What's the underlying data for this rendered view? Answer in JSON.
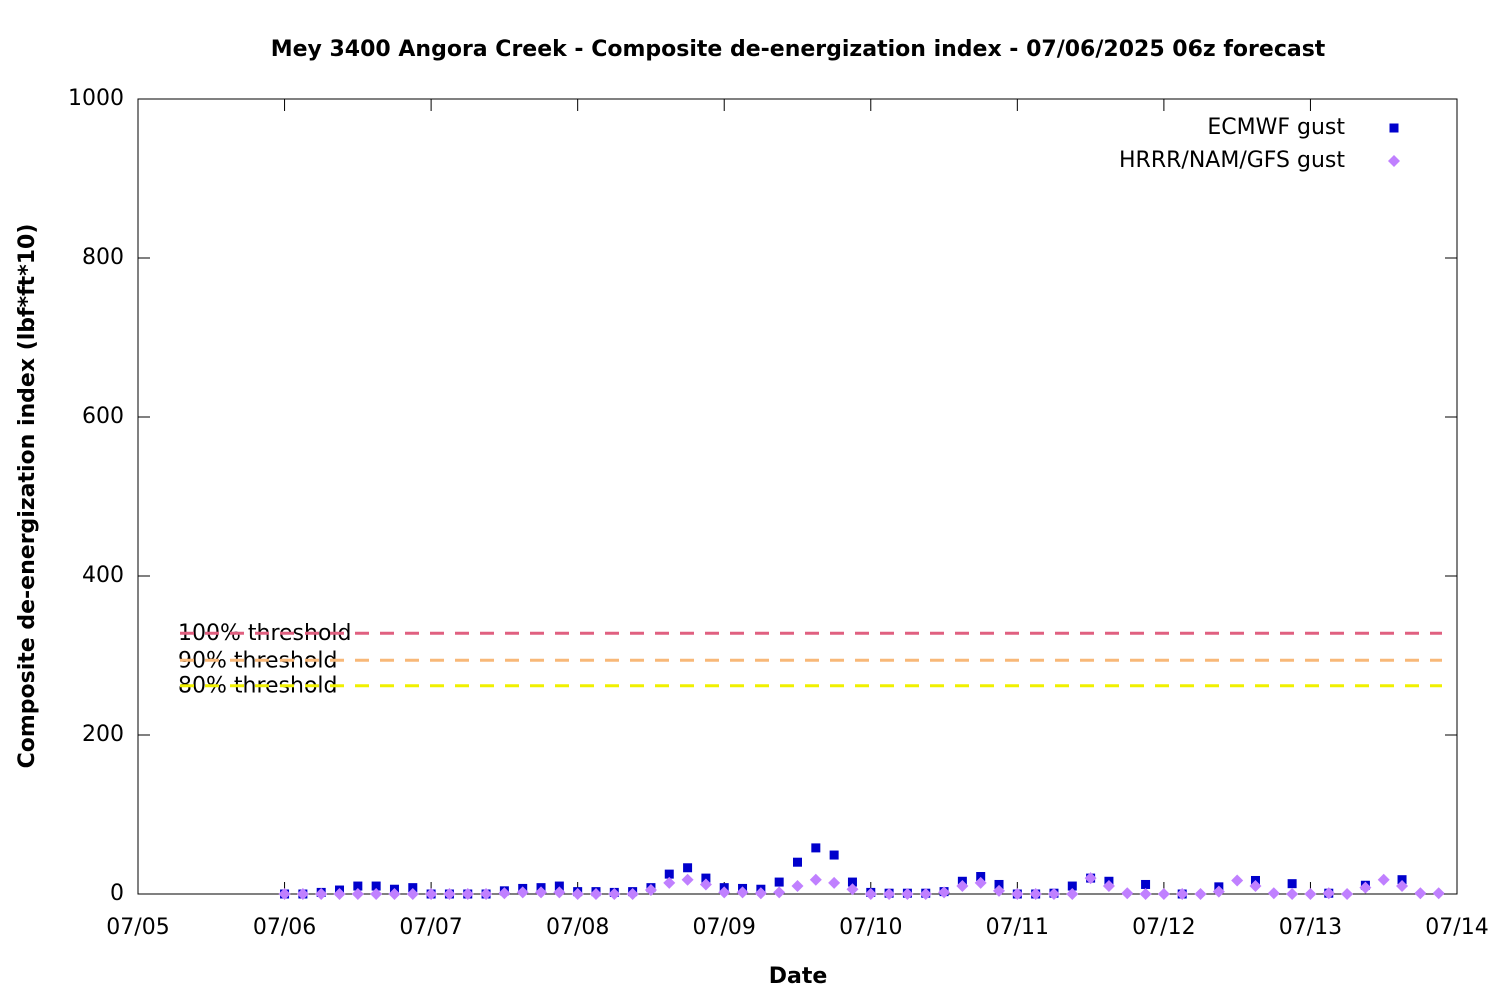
{
  "chart_data": {
    "type": "scatter",
    "title": "Mey 3400 Angora Creek - Composite de-energization index - 07/06/2025 06z forecast",
    "x_label": "Date",
    "y_label": "Composite de-energization index (lbf*ft*10)",
    "xlim": [
      5,
      14
    ],
    "xticks": [
      {
        "value": 5,
        "label": "07/05"
      },
      {
        "value": 6,
        "label": "07/06"
      },
      {
        "value": 7,
        "label": "07/07"
      },
      {
        "value": 8,
        "label": "07/08"
      },
      {
        "value": 9,
        "label": "07/09"
      },
      {
        "value": 10,
        "label": "07/10"
      },
      {
        "value": 11,
        "label": "07/11"
      },
      {
        "value": 12,
        "label": "07/12"
      },
      {
        "value": 13,
        "label": "07/13"
      },
      {
        "value": 14,
        "label": "07/14"
      }
    ],
    "ylim": [
      0,
      1000
    ],
    "yticks": [
      0,
      200,
      400,
      600,
      800,
      1000
    ],
    "grid": false,
    "legend": "top-right",
    "x": [
      6,
      6.125,
      6.25,
      6.375,
      6.5,
      6.625,
      6.75,
      6.875,
      7,
      7.125,
      7.25,
      7.375,
      7.5,
      7.625,
      7.75,
      7.875,
      8,
      8.125,
      8.25,
      8.375,
      8.5,
      8.625,
      8.75,
      8.875,
      9,
      9.125,
      9.25,
      9.375,
      9.5,
      9.625,
      9.75,
      9.875,
      10,
      10.125,
      10.25,
      10.375,
      10.5,
      10.625,
      10.75,
      10.875,
      11,
      11.125,
      11.25,
      11.375,
      11.5,
      11.625,
      11.75,
      11.875,
      12,
      12.125,
      12.25,
      12.375,
      12.5,
      12.625,
      12.75,
      12.875,
      13,
      13.125,
      13.25,
      13.375,
      13.5,
      13.625,
      13.75,
      13.875
    ],
    "series": [
      {
        "name": "ECMWF gust",
        "color": "#0000cc",
        "marker": "square",
        "values": [
          0,
          0,
          2,
          5,
          10,
          10,
          6,
          8,
          0,
          0,
          0,
          0,
          4,
          7,
          8,
          10,
          3,
          3,
          2,
          3,
          8,
          25,
          33,
          20,
          8,
          7,
          6,
          15,
          40,
          58,
          49,
          15,
          2,
          1,
          1,
          1,
          3,
          16,
          22,
          12,
          0,
          0,
          1,
          10,
          20,
          16,
          null,
          12,
          null,
          0,
          null,
          9,
          null,
          17,
          null,
          13,
          null,
          1,
          null,
          11,
          null,
          18,
          null,
          null
        ]
      },
      {
        "name": "HRRR/NAM/GFS gust",
        "color": "#c080ff",
        "marker": "diamond",
        "values": [
          0,
          0,
          0,
          0,
          0,
          0,
          0,
          0,
          0,
          0,
          0,
          0,
          1,
          2,
          2,
          2,
          0,
          0,
          0,
          0,
          5,
          14,
          18,
          12,
          2,
          2,
          1,
          2,
          10,
          18,
          14,
          6,
          0,
          0,
          0,
          0,
          2,
          10,
          14,
          4,
          0,
          0,
          0,
          0,
          20,
          10,
          1,
          0,
          0,
          0,
          0,
          3,
          17,
          10,
          1,
          0,
          0,
          1,
          0,
          8,
          18,
          10,
          1,
          1
        ]
      }
    ],
    "thresholds": [
      {
        "name": "100% threshold",
        "value": 328,
        "color": "#e06080"
      },
      {
        "name": "90% threshold",
        "value": 294,
        "color": "#f8b878"
      },
      {
        "name": "80% threshold",
        "value": 262,
        "color": "#f0f000"
      }
    ]
  }
}
